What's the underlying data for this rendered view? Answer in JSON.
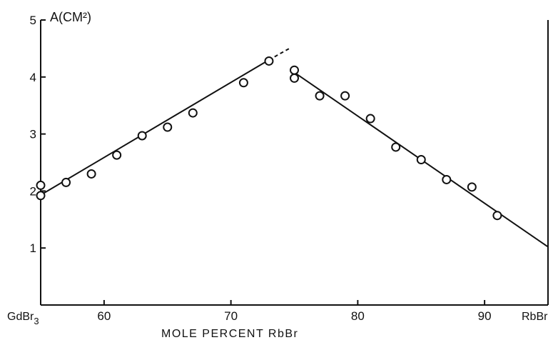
{
  "chart_data": {
    "type": "scatter",
    "title": "",
    "xlabel": "MOLE PERCENT RbBr",
    "ylabel": "A(CM²)",
    "x_start_label": "GdBr",
    "x_start_label_sub": "3",
    "x_end_label": "RbBr",
    "xlim": [
      55,
      95
    ],
    "ylim": [
      0,
      5
    ],
    "x_ticks": [
      60,
      70,
      80,
      90
    ],
    "x_tick_labels": [
      "60",
      "70",
      "80",
      "90"
    ],
    "y_ticks": [
      1,
      2,
      3,
      4,
      5
    ],
    "y_tick_labels": [
      "1",
      "2",
      "3",
      "4",
      "5"
    ],
    "grid": false,
    "points": [
      {
        "x": 55.0,
        "y": 2.1
      },
      {
        "x": 55.0,
        "y": 1.92
      },
      {
        "x": 57.0,
        "y": 2.15
      },
      {
        "x": 59.0,
        "y": 2.3
      },
      {
        "x": 61.0,
        "y": 2.63
      },
      {
        "x": 63.0,
        "y": 2.97
      },
      {
        "x": 65.0,
        "y": 3.12
      },
      {
        "x": 67.0,
        "y": 3.37
      },
      {
        "x": 71.0,
        "y": 3.9
      },
      {
        "x": 73.0,
        "y": 4.28
      },
      {
        "x": 75.0,
        "y": 4.12
      },
      {
        "x": 75.0,
        "y": 3.98
      },
      {
        "x": 77.0,
        "y": 3.67
      },
      {
        "x": 79.0,
        "y": 3.67
      },
      {
        "x": 81.0,
        "y": 3.27
      },
      {
        "x": 83.0,
        "y": 2.77
      },
      {
        "x": 85.0,
        "y": 2.55
      },
      {
        "x": 87.0,
        "y": 2.2
      },
      {
        "x": 89.0,
        "y": 2.07
      },
      {
        "x": 91.0,
        "y": 1.57
      }
    ],
    "fit_lines": [
      {
        "style": "solid",
        "x": [
          55.0,
          73.0
        ],
        "y": [
          1.93,
          4.3
        ]
      },
      {
        "style": "dashed",
        "x": [
          73.0,
          74.6
        ],
        "y": [
          4.3,
          4.5
        ]
      },
      {
        "style": "solid",
        "x": [
          75.0,
          95.0
        ],
        "y": [
          4.08,
          1.02
        ]
      }
    ]
  }
}
